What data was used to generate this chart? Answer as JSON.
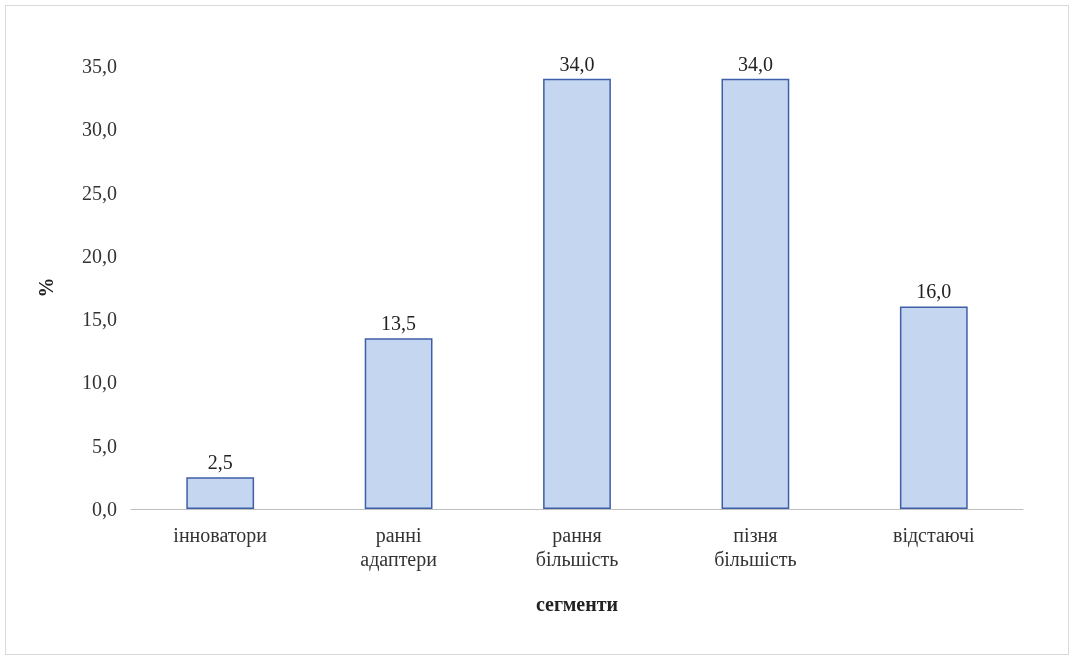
{
  "chart_data": {
    "type": "bar",
    "xlabel": "сегменти",
    "ylabel": "%",
    "categories": [
      "інноватори",
      "ранні адаптери",
      "рання більшість",
      "пізня більшість",
      "відстаючі"
    ],
    "values": [
      2.5,
      13.5,
      34.0,
      34.0,
      16.0
    ],
    "value_labels": [
      "2,5",
      "13,5",
      "34,0",
      "34,0",
      "16,0"
    ],
    "color": "#c5d6f0",
    "ylim": [
      0,
      35
    ],
    "yticks": [
      {
        "value": 0,
        "label": "0,0"
      },
      {
        "value": 5,
        "label": "5,0"
      },
      {
        "value": 10,
        "label": "10,0"
      },
      {
        "value": 15,
        "label": "15,0"
      },
      {
        "value": 20,
        "label": "20,0"
      },
      {
        "value": 25,
        "label": "25,0"
      },
      {
        "value": 30,
        "label": "30,0"
      },
      {
        "value": 35,
        "label": "35,0"
      }
    ],
    "grid": false
  }
}
